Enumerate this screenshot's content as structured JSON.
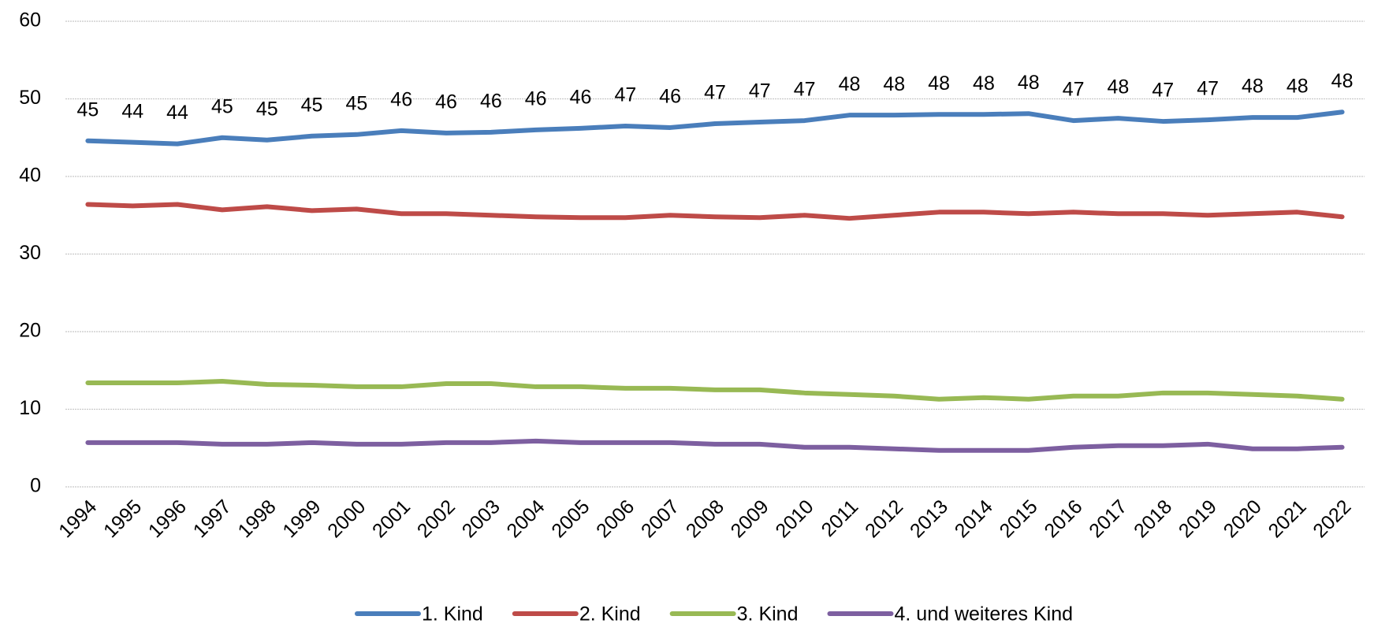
{
  "chart_data": {
    "type": "line",
    "categories": [
      "1994",
      "1995",
      "1996",
      "1997",
      "1998",
      "1999",
      "2000",
      "2001",
      "2002",
      "2003",
      "2004",
      "2005",
      "2006",
      "2007",
      "2008",
      "2009",
      "2010",
      "2011",
      "2012",
      "2013",
      "2014",
      "2015",
      "2016",
      "2017",
      "2018",
      "2019",
      "2020",
      "2021",
      "2022"
    ],
    "series": [
      {
        "name": "1. Kind",
        "color": "#4a7ebb",
        "values": [
          44.6,
          44.4,
          44.2,
          45.0,
          44.7,
          45.2,
          45.4,
          45.9,
          45.6,
          45.7,
          46.0,
          46.2,
          46.5,
          46.3,
          46.8,
          47.0,
          47.2,
          47.9,
          47.9,
          48.0,
          48.0,
          48.1,
          47.2,
          47.5,
          47.1,
          47.3,
          47.6,
          47.6,
          48.3
        ],
        "value_labels": [
          "45",
          "44",
          "44",
          "45",
          "45",
          "45",
          "45",
          "46",
          "46",
          "46",
          "46",
          "46",
          "47",
          "46",
          "47",
          "47",
          "47",
          "48",
          "48",
          "48",
          "48",
          "48",
          "47",
          "48",
          "47",
          "47",
          "48",
          "48",
          "48"
        ]
      },
      {
        "name": "2. Kind",
        "color": "#be4b48",
        "values": [
          36.4,
          36.2,
          36.4,
          35.7,
          36.1,
          35.6,
          35.8,
          35.2,
          35.2,
          35.0,
          34.8,
          34.7,
          34.7,
          35.0,
          34.8,
          34.7,
          35.0,
          34.6,
          35.0,
          35.4,
          35.4,
          35.2,
          35.4,
          35.2,
          35.2,
          35.0,
          35.2,
          35.4,
          34.8
        ]
      },
      {
        "name": "3. Kind",
        "color": "#98b954",
        "values": [
          13.4,
          13.4,
          13.4,
          13.6,
          13.2,
          13.1,
          12.9,
          12.9,
          13.3,
          13.3,
          12.9,
          12.9,
          12.7,
          12.7,
          12.5,
          12.5,
          12.1,
          11.9,
          11.7,
          11.3,
          11.5,
          11.3,
          11.7,
          11.7,
          12.1,
          12.1,
          11.9,
          11.7,
          11.3
        ]
      },
      {
        "name": "4. und weiteres Kind",
        "color": "#7d5fa0",
        "values": [
          5.7,
          5.7,
          5.7,
          5.5,
          5.5,
          5.7,
          5.5,
          5.5,
          5.7,
          5.7,
          5.9,
          5.7,
          5.7,
          5.7,
          5.5,
          5.5,
          5.1,
          5.1,
          4.9,
          4.7,
          4.7,
          4.7,
          5.1,
          5.3,
          5.3,
          5.5,
          4.9,
          4.9,
          5.1
        ]
      }
    ],
    "ylim": [
      0,
      60
    ],
    "yticks": [
      0,
      10,
      20,
      30,
      40,
      50,
      60
    ],
    "grid": true,
    "legend": "bottom"
  }
}
